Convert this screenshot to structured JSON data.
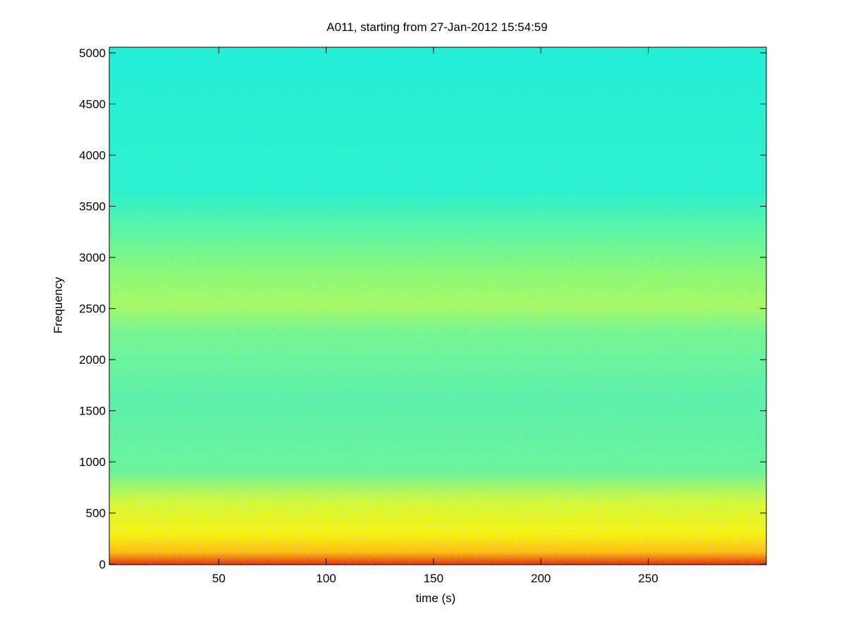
{
  "chart_data": {
    "type": "spectrogram",
    "title": "A011, starting from 27-Jan-2012 15:54:59",
    "xlabel": "time (s)",
    "ylabel": "Frequency",
    "xlim": [
      -1,
      305
    ],
    "xticks": [
      50,
      100,
      150,
      200,
      250
    ],
    "ylim": [
      -5,
      5055
    ],
    "yticks": [
      0,
      500,
      1000,
      1500,
      2000,
      2500,
      3000,
      3500,
      4000,
      4500,
      5000
    ],
    "colormap": "jet"
  }
}
